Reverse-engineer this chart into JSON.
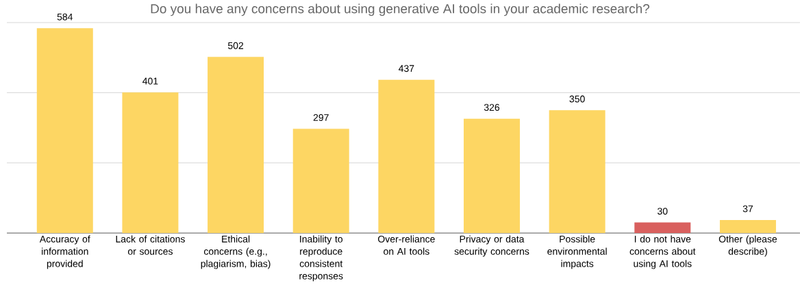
{
  "chart_data": {
    "type": "bar",
    "title": "Do you have any concerns about using generative AI tools in your academic research?",
    "categories": [
      "Accuracy of information provided",
      "Lack of citations or sources",
      "Ethical concerns (e.g., plagiarism, bias)",
      "Inability to reproduce consistent responses",
      "Over-reliance on AI tools",
      "Privacy or data security concerns",
      "Possible environmental impacts",
      "I do not have concerns about using AI tools",
      "Other (please describe)"
    ],
    "values": [
      584,
      401,
      502,
      297,
      437,
      326,
      350,
      30,
      37
    ],
    "colors": [
      "#fdd663",
      "#fdd663",
      "#fdd663",
      "#fdd663",
      "#fdd663",
      "#fdd663",
      "#fdd663",
      "#d9605e",
      "#fdd663"
    ],
    "ylim": [
      0,
      600
    ],
    "yticks": [
      {
        "value": 0,
        "label": null
      },
      {
        "value": 200,
        "label": null
      },
      {
        "value": 400,
        "label": null
      },
      {
        "value": 600,
        "label": null
      }
    ],
    "tick_labels": "x",
    "grid": "y",
    "data_labels": true
  }
}
